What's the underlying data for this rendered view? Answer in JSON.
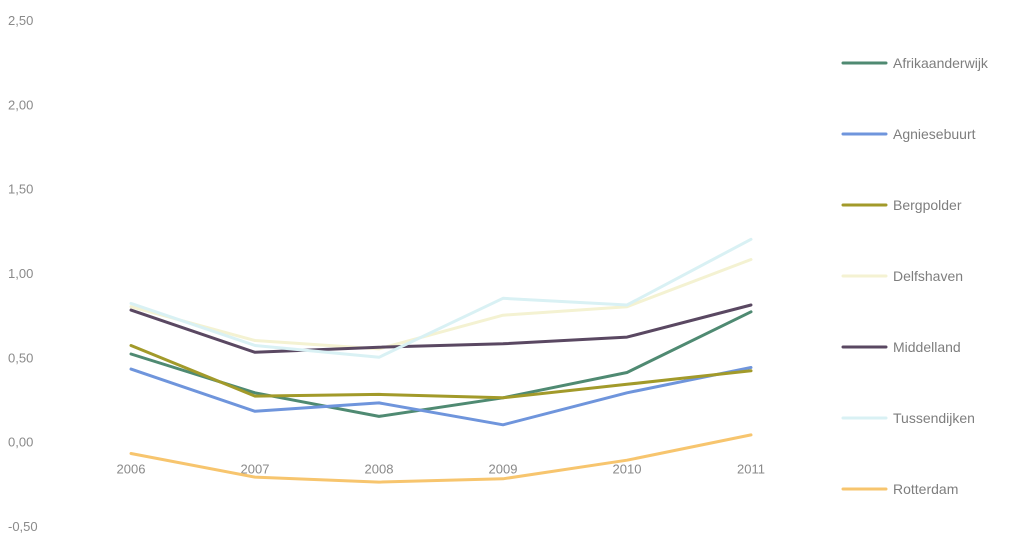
{
  "chart_data": {
    "type": "line",
    "title": "",
    "xlabel": "",
    "ylabel": "",
    "x": [
      "2006",
      "2007",
      "2008",
      "2009",
      "2010",
      "2011"
    ],
    "ylim": [
      -0.5,
      2.5
    ],
    "yticks": [
      "2,50",
      "2,00",
      "1,50",
      "1,00",
      "0,50",
      "0,00",
      "-0,50"
    ],
    "grid": false,
    "legend": "right",
    "series": [
      {
        "name": "Afrikaanderwijk",
        "color": "#4f8a72",
        "values": [
          0.52,
          0.29,
          0.15,
          0.26,
          0.41,
          0.77
        ]
      },
      {
        "name": "Agniesebuurt",
        "color": "#6f95dc",
        "values": [
          0.43,
          0.18,
          0.23,
          0.1,
          0.29,
          0.44
        ]
      },
      {
        "name": "Bergpolder",
        "color": "#a29a2a",
        "values": [
          0.57,
          0.27,
          0.28,
          0.26,
          0.34,
          0.42
        ]
      },
      {
        "name": "Delfshaven",
        "color": "#f4f2d2",
        "values": [
          0.8,
          0.6,
          0.55,
          0.75,
          0.8,
          1.08
        ]
      },
      {
        "name": "Middelland",
        "color": "#5a4862",
        "values": [
          0.78,
          0.53,
          0.56,
          0.58,
          0.62,
          0.81
        ]
      },
      {
        "name": "Tussendijken",
        "color": "#d9f1f4",
        "values": [
          0.82,
          0.57,
          0.5,
          0.85,
          0.81,
          1.2
        ]
      },
      {
        "name": "Rotterdam",
        "color": "#f7c56e",
        "values": [
          -0.07,
          -0.21,
          -0.24,
          -0.22,
          -0.11,
          0.04
        ]
      }
    ]
  }
}
